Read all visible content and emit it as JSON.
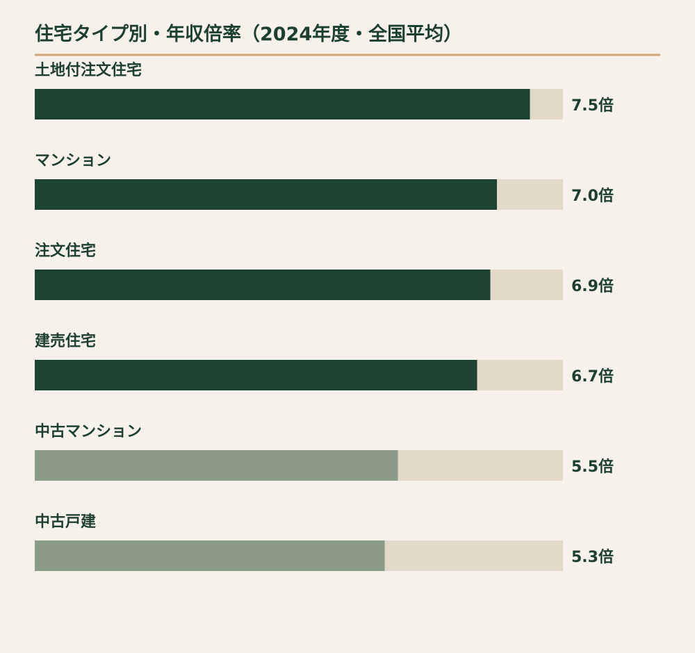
{
  "chart_data": {
    "type": "bar",
    "orientation": "horizontal",
    "title": "住宅タイプ別・年収倍率（2024年度・全国平均）",
    "categories": [
      "土地付注文住宅",
      "マンション",
      "注文住宅",
      "建売住宅",
      "中古マンション",
      "中古戸建"
    ],
    "values": [
      7.5,
      7.0,
      6.9,
      6.7,
      5.5,
      5.3
    ],
    "value_labels": [
      "7.5倍",
      "7.0倍",
      "6.9倍",
      "6.7倍",
      "5.5倍",
      "5.3倍"
    ],
    "xlim": [
      0,
      8
    ],
    "grid": false,
    "colors": {
      "background": "#f6f1ea",
      "rule": "#d2a679",
      "track": "#e3d9c8",
      "new_housing": "#1d4332",
      "used_housing": "#8c9a88",
      "text": "#1d3f2f"
    },
    "bar_colors": [
      "new_housing",
      "new_housing",
      "new_housing",
      "new_housing",
      "used_housing",
      "used_housing"
    ]
  }
}
